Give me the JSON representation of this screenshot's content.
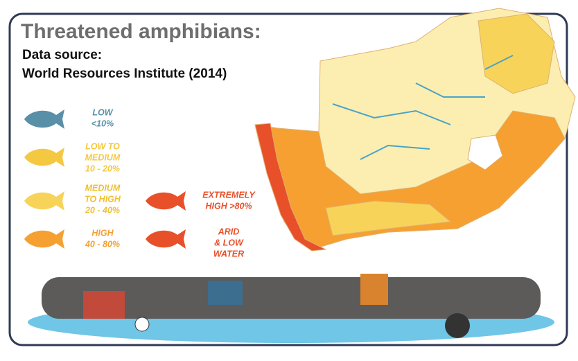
{
  "header": {
    "title": "Threatened amphibians:",
    "source_label": "Data source:",
    "source": "World Resources Institute (2014)"
  },
  "legend": [
    {
      "lines": [
        "LOW",
        "<10%"
      ]
    },
    {
      "lines": [
        "LOW TO",
        "MEDIUM",
        "10 - 20%"
      ]
    },
    {
      "lines": [
        "MEDIUM",
        "TO HIGH",
        "20 - 40%"
      ]
    },
    {
      "lines": [
        "HIGH",
        "40 - 80%"
      ]
    },
    {
      "lines": [
        "EXTREMELY",
        "HIGH >80%"
      ]
    },
    {
      "lines": [
        "ARID",
        "& LOW",
        "WATER"
      ]
    }
  ]
}
